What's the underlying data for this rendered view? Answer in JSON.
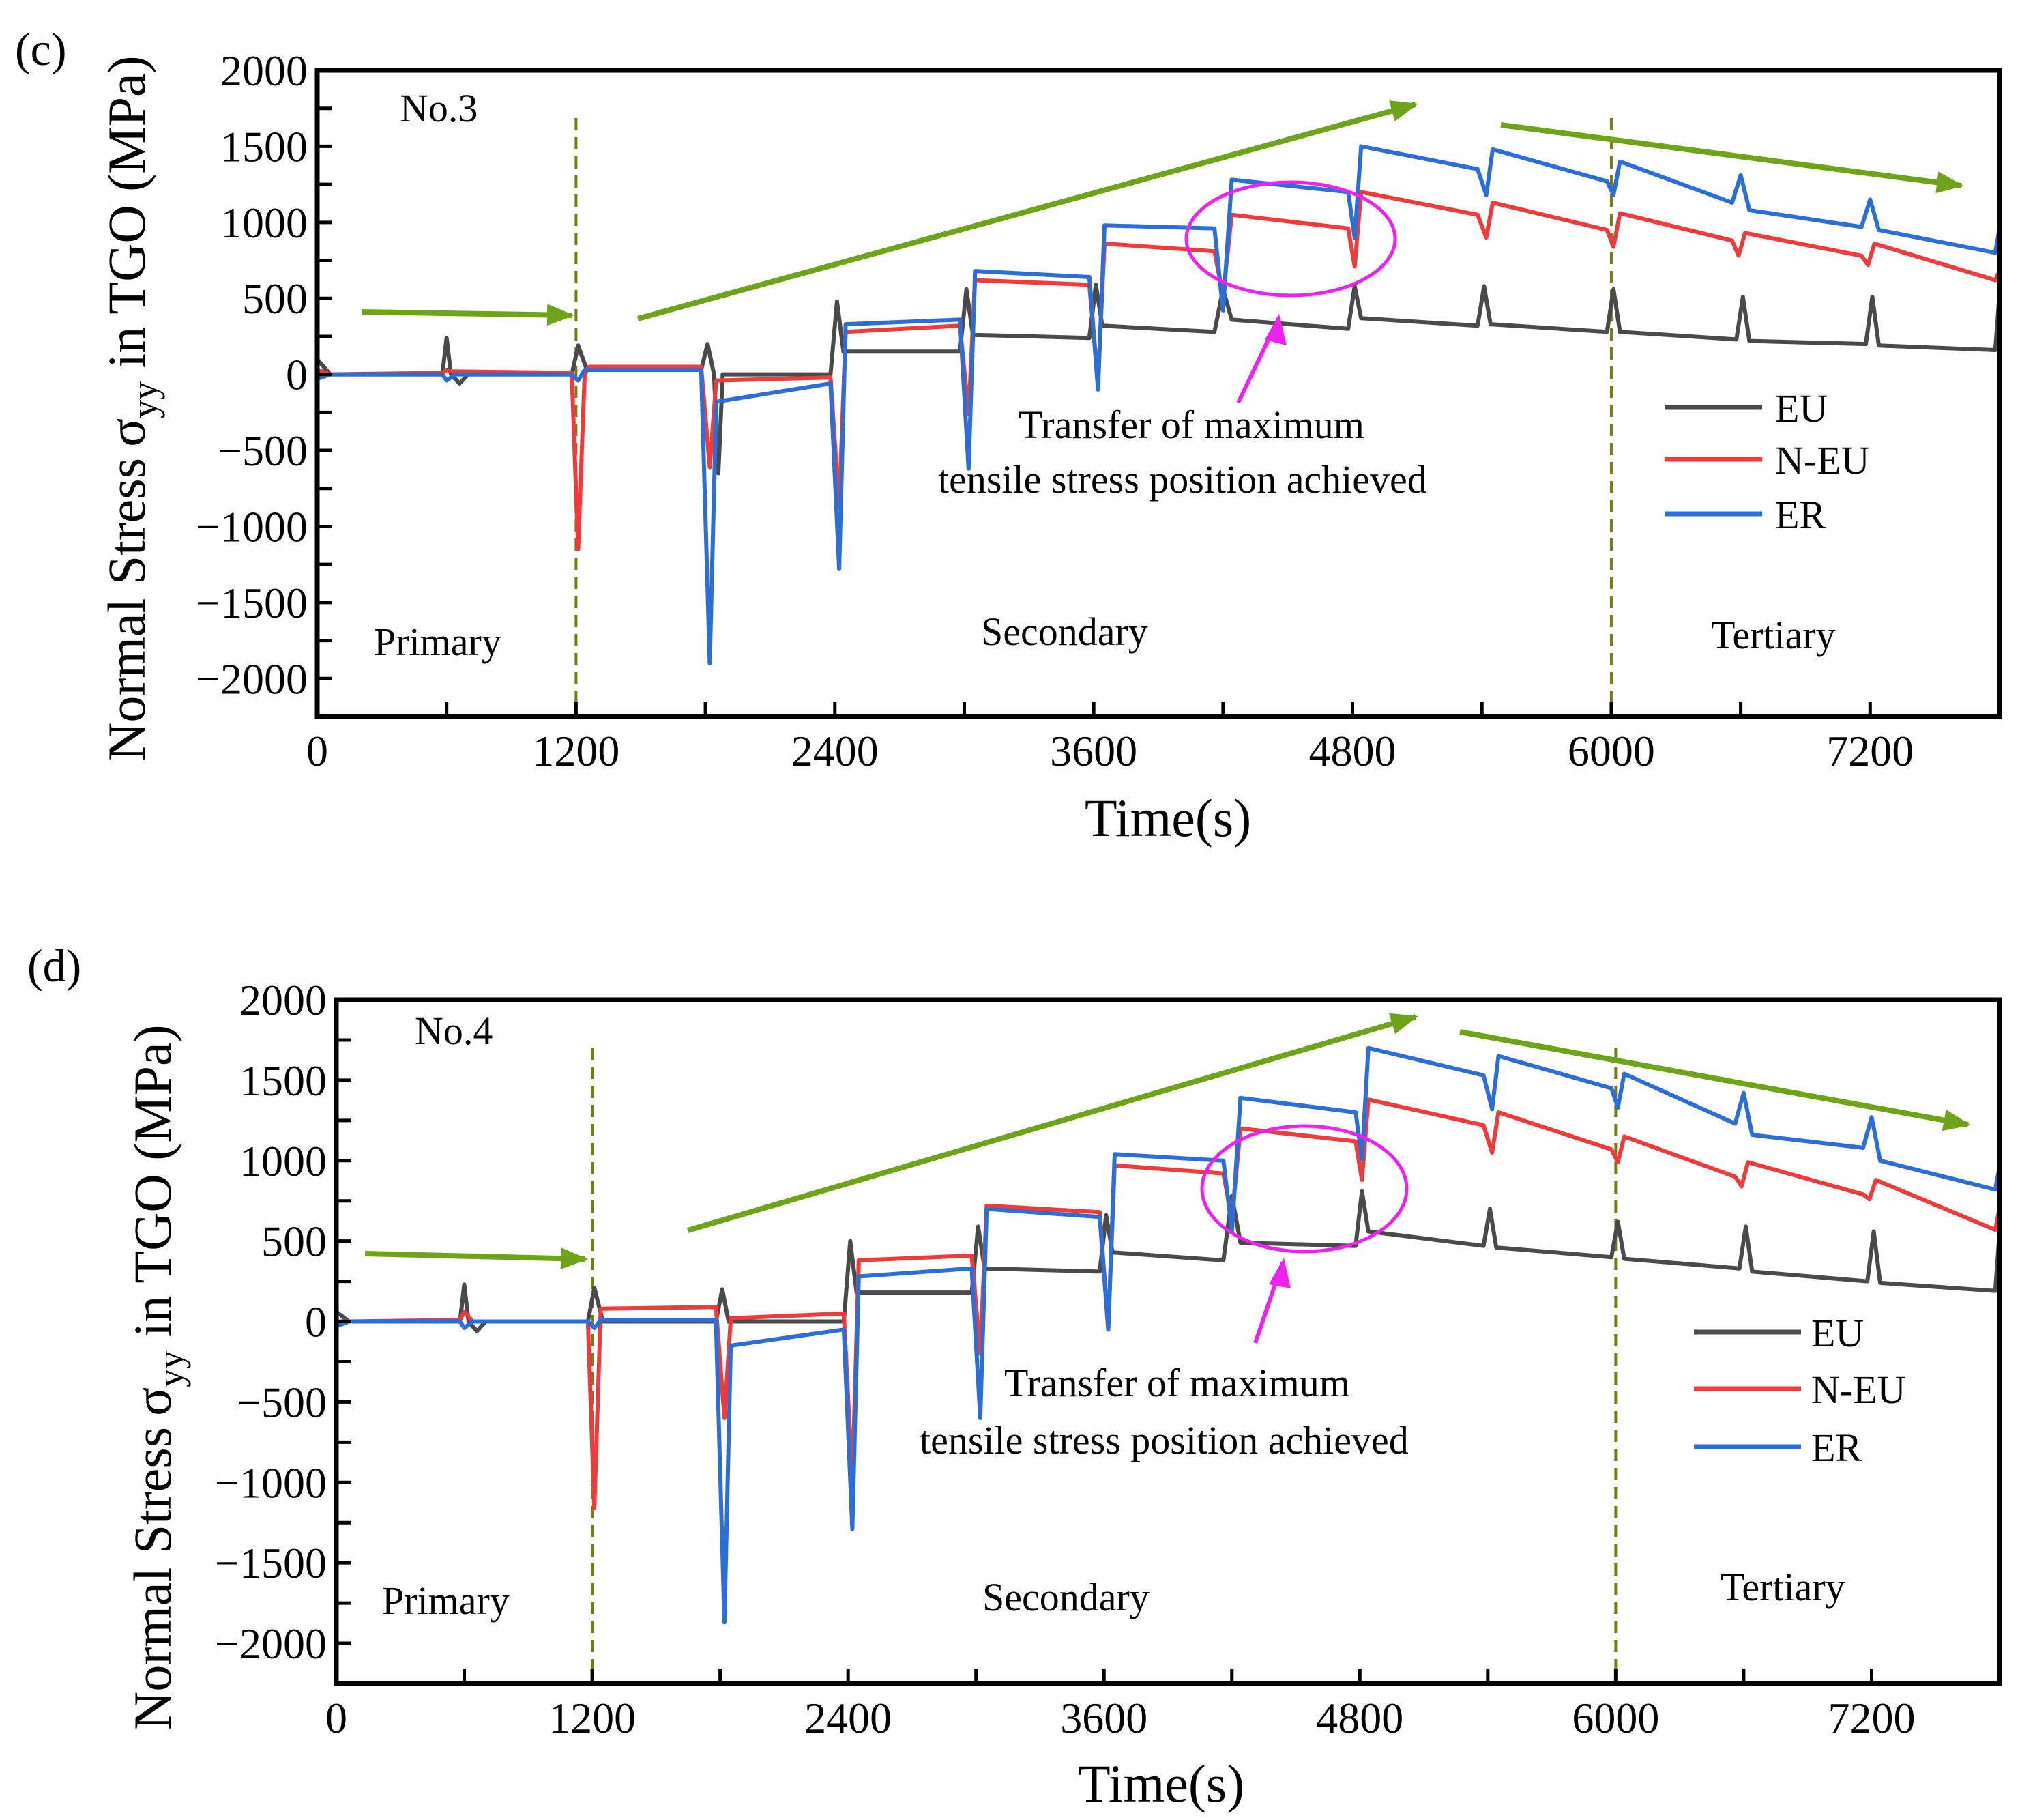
{
  "panels": [
    {
      "tag": "(c)",
      "sample": "No.3",
      "y_title": "Normal Stress",
      "y_sigma": "σ",
      "y_sub": "yy",
      "y_suffix": " in TGO (MPa)",
      "x_title": "Time(s)",
      "stage_primary": "Primary",
      "stage_secondary": "Secondary",
      "stage_tertiary": "Tertiary",
      "annot_line1": "Transfer of maximum",
      "annot_line2": "tensile stress position achieved"
    },
    {
      "tag": "(d)",
      "sample": "No.4",
      "y_title": "Normal Stress",
      "y_sigma": "σ",
      "y_sub": "yy",
      "y_suffix": " in TGO (MPa)",
      "x_title": "Time(s)",
      "stage_primary": "Primary",
      "stage_secondary": "Secondary",
      "stage_tertiary": "Tertiary",
      "annot_line1": "Transfer of maximum",
      "annot_line2": "tensile stress position achieved"
    }
  ],
  "colors": {
    "EU": "#4a4a4a",
    "N-EU": "#ee3b3b",
    "ER": "#2b6fd6",
    "arrow": "#6ea31a",
    "divider": "#7a7a10",
    "highlight": "#ee22ee"
  },
  "chart_data": [
    {
      "type": "line",
      "title": "(c) No.3",
      "xlabel": "Time(s)",
      "ylabel": "Normal Stress σyy in TGO (MPa)",
      "xlim": [
        0,
        7800
      ],
      "ylim": [
        -2250,
        2000
      ],
      "xticks": [
        0,
        1200,
        2400,
        3600,
        4800,
        6000,
        7200
      ],
      "yticks": [
        2000,
        1500,
        1000,
        500,
        0,
        -500,
        -1000,
        -1500,
        -2000
      ],
      "stage_boundaries": [
        1200,
        6000
      ],
      "series": [
        {
          "name": "EU",
          "points": [
            [
              0,
              100
            ],
            [
              60,
              0
            ],
            [
              580,
              0
            ],
            [
              600,
              240
            ],
            [
              620,
              0
            ],
            [
              660,
              -60
            ],
            [
              700,
              0
            ],
            [
              1180,
              0
            ],
            [
              1210,
              190
            ],
            [
              1250,
              30
            ],
            [
              1780,
              30
            ],
            [
              1810,
              200
            ],
            [
              1840,
              0
            ],
            [
              1860,
              -650
            ],
            [
              1880,
              0
            ],
            [
              2380,
              0
            ],
            [
              2410,
              480
            ],
            [
              2440,
              150
            ],
            [
              2980,
              150
            ],
            [
              3010,
              560
            ],
            [
              3040,
              260
            ],
            [
              3580,
              240
            ],
            [
              3610,
              590
            ],
            [
              3640,
              320
            ],
            [
              4160,
              280
            ],
            [
              4200,
              560
            ],
            [
              4240,
              360
            ],
            [
              4780,
              300
            ],
            [
              4810,
              580
            ],
            [
              4840,
              370
            ],
            [
              5380,
              320
            ],
            [
              5410,
              580
            ],
            [
              5440,
              330
            ],
            [
              5980,
              280
            ],
            [
              6010,
              560
            ],
            [
              6040,
              280
            ],
            [
              6580,
              230
            ],
            [
              6610,
              510
            ],
            [
              6640,
              220
            ],
            [
              7180,
              200
            ],
            [
              7210,
              510
            ],
            [
              7240,
              190
            ],
            [
              7780,
              160
            ],
            [
              7800,
              530
            ]
          ]
        },
        {
          "name": "N-EU",
          "points": [
            [
              0,
              30
            ],
            [
              60,
              0
            ],
            [
              580,
              10
            ],
            [
              600,
              30
            ],
            [
              620,
              20
            ],
            [
              1180,
              10
            ],
            [
              1210,
              -1150
            ],
            [
              1240,
              0
            ],
            [
              1260,
              50
            ],
            [
              1780,
              50
            ],
            [
              1820,
              -610
            ],
            [
              1850,
              -40
            ],
            [
              2380,
              -20
            ],
            [
              2420,
              -880
            ],
            [
              2450,
              280
            ],
            [
              2980,
              320
            ],
            [
              3020,
              -260
            ],
            [
              3050,
              620
            ],
            [
              3580,
              590
            ],
            [
              3620,
              -50
            ],
            [
              3650,
              860
            ],
            [
              4160,
              810
            ],
            [
              4200,
              520
            ],
            [
              4240,
              1050
            ],
            [
              4780,
              960
            ],
            [
              4810,
              710
            ],
            [
              4840,
              1200
            ],
            [
              5380,
              1050
            ],
            [
              5420,
              900
            ],
            [
              5450,
              1130
            ],
            [
              5980,
              950
            ],
            [
              6010,
              840
            ],
            [
              6040,
              1060
            ],
            [
              6560,
              880
            ],
            [
              6590,
              780
            ],
            [
              6620,
              930
            ],
            [
              7160,
              780
            ],
            [
              7190,
              720
            ],
            [
              7220,
              860
            ],
            [
              7780,
              620
            ],
            [
              7800,
              680
            ]
          ]
        },
        {
          "name": "ER",
          "points": [
            [
              0,
              -30
            ],
            [
              60,
              0
            ],
            [
              580,
              0
            ],
            [
              600,
              -40
            ],
            [
              640,
              0
            ],
            [
              1180,
              0
            ],
            [
              1210,
              -40
            ],
            [
              1240,
              30
            ],
            [
              1780,
              30
            ],
            [
              1820,
              -1900
            ],
            [
              1850,
              -180
            ],
            [
              2380,
              -60
            ],
            [
              2420,
              -1280
            ],
            [
              2450,
              330
            ],
            [
              2980,
              360
            ],
            [
              3020,
              -620
            ],
            [
              3050,
              680
            ],
            [
              3580,
              640
            ],
            [
              3620,
              -100
            ],
            [
              3650,
              980
            ],
            [
              4160,
              960
            ],
            [
              4200,
              420
            ],
            [
              4240,
              1280
            ],
            [
              4780,
              1200
            ],
            [
              4810,
              900
            ],
            [
              4840,
              1500
            ],
            [
              5380,
              1350
            ],
            [
              5420,
              1180
            ],
            [
              5450,
              1480
            ],
            [
              5980,
              1270
            ],
            [
              6010,
              1180
            ],
            [
              6040,
              1400
            ],
            [
              6560,
              1130
            ],
            [
              6600,
              1310
            ],
            [
              6640,
              1080
            ],
            [
              7160,
              970
            ],
            [
              7200,
              1150
            ],
            [
              7240,
              950
            ],
            [
              7780,
              800
            ],
            [
              7800,
              960
            ]
          ]
        }
      ]
    },
    {
      "type": "line",
      "title": "(d) No.4",
      "xlabel": "Time(s)",
      "ylabel": "Normal Stress σyy in TGO (MPa)",
      "xlim": [
        0,
        7800
      ],
      "ylim": [
        -2250,
        2000
      ],
      "xticks": [
        0,
        1200,
        2400,
        3600,
        4800,
        6000,
        7200
      ],
      "yticks": [
        2000,
        1500,
        1000,
        500,
        0,
        -500,
        -1000,
        -1500,
        -2000
      ],
      "stage_boundaries": [
        1200,
        6000
      ],
      "series": [
        {
          "name": "EU",
          "points": [
            [
              0,
              60
            ],
            [
              60,
              0
            ],
            [
              580,
              0
            ],
            [
              600,
              230
            ],
            [
              620,
              0
            ],
            [
              660,
              -60
            ],
            [
              700,
              0
            ],
            [
              1180,
              0
            ],
            [
              1210,
              210
            ],
            [
              1250,
              0
            ],
            [
              1780,
              0
            ],
            [
              1810,
              200
            ],
            [
              1840,
              0
            ],
            [
              2380,
              0
            ],
            [
              2410,
              500
            ],
            [
              2440,
              180
            ],
            [
              2980,
              180
            ],
            [
              3010,
              590
            ],
            [
              3040,
              330
            ],
            [
              3580,
              310
            ],
            [
              3610,
              660
            ],
            [
              3640,
              430
            ],
            [
              4160,
              380
            ],
            [
              4200,
              780
            ],
            [
              4240,
              490
            ],
            [
              4780,
              470
            ],
            [
              4810,
              810
            ],
            [
              4840,
              560
            ],
            [
              5380,
              470
            ],
            [
              5410,
              700
            ],
            [
              5440,
              460
            ],
            [
              5980,
              400
            ],
            [
              6010,
              620
            ],
            [
              6040,
              390
            ],
            [
              6580,
              330
            ],
            [
              6610,
              590
            ],
            [
              6640,
              310
            ],
            [
              7180,
              250
            ],
            [
              7210,
              560
            ],
            [
              7240,
              240
            ],
            [
              7780,
              190
            ],
            [
              7800,
              550
            ]
          ]
        },
        {
          "name": "N-EU",
          "points": [
            [
              0,
              0
            ],
            [
              60,
              0
            ],
            [
              580,
              10
            ],
            [
              600,
              60
            ],
            [
              640,
              0
            ],
            [
              1180,
              0
            ],
            [
              1210,
              -1160
            ],
            [
              1240,
              80
            ],
            [
              1780,
              90
            ],
            [
              1820,
              -600
            ],
            [
              1850,
              20
            ],
            [
              2380,
              50
            ],
            [
              2420,
              -1000
            ],
            [
              2450,
              380
            ],
            [
              2980,
              410
            ],
            [
              3020,
              -200
            ],
            [
              3050,
              720
            ],
            [
              3580,
              680
            ],
            [
              3620,
              -50
            ],
            [
              3650,
              970
            ],
            [
              4160,
              920
            ],
            [
              4200,
              640
            ],
            [
              4240,
              1200
            ],
            [
              4780,
              1120
            ],
            [
              4810,
              880
            ],
            [
              4840,
              1380
            ],
            [
              5380,
              1220
            ],
            [
              5420,
              1050
            ],
            [
              5450,
              1300
            ],
            [
              5980,
              1070
            ],
            [
              6010,
              990
            ],
            [
              6040,
              1150
            ],
            [
              6560,
              900
            ],
            [
              6590,
              840
            ],
            [
              6620,
              990
            ],
            [
              7160,
              790
            ],
            [
              7190,
              760
            ],
            [
              7220,
              880
            ],
            [
              7780,
              570
            ],
            [
              7800,
              700
            ]
          ]
        },
        {
          "name": "ER",
          "points": [
            [
              0,
              -30
            ],
            [
              60,
              0
            ],
            [
              580,
              0
            ],
            [
              600,
              -40
            ],
            [
              640,
              0
            ],
            [
              1180,
              0
            ],
            [
              1210,
              -40
            ],
            [
              1240,
              10
            ],
            [
              1780,
              10
            ],
            [
              1820,
              -1870
            ],
            [
              1850,
              -150
            ],
            [
              2380,
              -50
            ],
            [
              2420,
              -1290
            ],
            [
              2450,
              280
            ],
            [
              2980,
              330
            ],
            [
              3020,
              -600
            ],
            [
              3050,
              700
            ],
            [
              3580,
              650
            ],
            [
              3620,
              -50
            ],
            [
              3650,
              1040
            ],
            [
              4160,
              1000
            ],
            [
              4200,
              560
            ],
            [
              4240,
              1390
            ],
            [
              4780,
              1300
            ],
            [
              4810,
              1010
            ],
            [
              4840,
              1700
            ],
            [
              5380,
              1530
            ],
            [
              5420,
              1320
            ],
            [
              5450,
              1650
            ],
            [
              5980,
              1450
            ],
            [
              6010,
              1330
            ],
            [
              6040,
              1540
            ],
            [
              6560,
              1230
            ],
            [
              6600,
              1420
            ],
            [
              6640,
              1160
            ],
            [
              7160,
              1080
            ],
            [
              7200,
              1270
            ],
            [
              7240,
              1000
            ],
            [
              7780,
              820
            ],
            [
              7800,
              960
            ]
          ]
        }
      ]
    }
  ]
}
